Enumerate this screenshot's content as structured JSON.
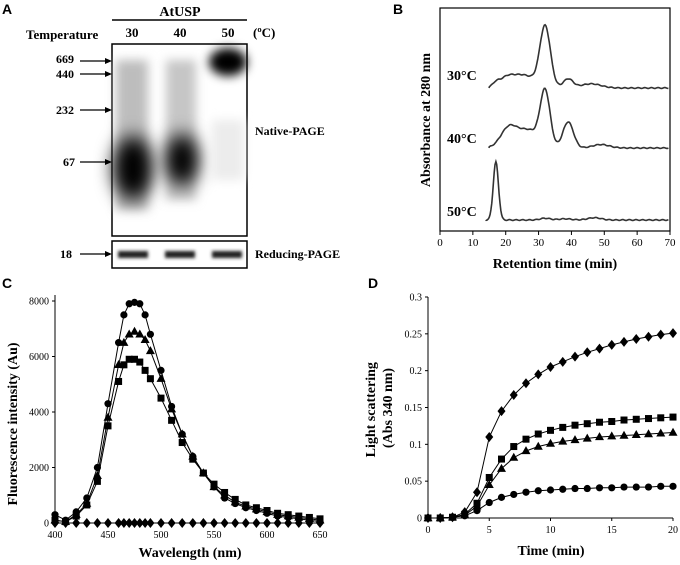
{
  "panels": {
    "a": {
      "letter": "A",
      "group_label": "AtUSP",
      "temperature_label": "Temperature",
      "temperatures": [
        "30",
        "40",
        "50"
      ],
      "unit": "(ºC)",
      "markers": [
        "669",
        "440",
        "232",
        "67"
      ],
      "native_label": "Native-PAGE",
      "reducing_marker": "18",
      "reducing_label": "Reducing-PAGE"
    },
    "b": {
      "letter": "B",
      "trace_labels": [
        "30°C",
        "40°C",
        "50°C"
      ],
      "peaks": [
        {
          "center": 32.0,
          "height": 1.0
        },
        {
          "center": 32.0,
          "height": 0.85
        },
        {
          "center": 17.0,
          "height": 0.95
        }
      ]
    },
    "c": {
      "letter": "C"
    },
    "d": {
      "letter": "D"
    }
  },
  "chart_data": [
    {
      "type": "line",
      "title": "",
      "xlabel": "Retention time (min)",
      "ylabel": "Absorbance at 280 nm",
      "xlim": [
        0,
        70
      ],
      "x_ticks": [
        "0",
        "10",
        "20",
        "30",
        "40",
        "50",
        "60",
        "70"
      ],
      "series": [
        {
          "name": "30°C",
          "main_peak_min": 32
        },
        {
          "name": "40°C",
          "main_peak_min": 32
        },
        {
          "name": "50°C",
          "main_peak_min": 17
        }
      ]
    },
    {
      "type": "line",
      "title": "",
      "xlabel": "Wavelength (nm)",
      "ylabel": "Fluorescence intensity (Au)",
      "xlim": [
        400,
        650
      ],
      "ylim": [
        0,
        8000
      ],
      "x_ticks": [
        "400",
        "450",
        "500",
        "550",
        "600",
        "650"
      ],
      "y_ticks": [
        "0",
        "2000",
        "4000",
        "6000",
        "8000"
      ],
      "x": [
        400,
        410,
        420,
        430,
        440,
        450,
        460,
        465,
        470,
        475,
        480,
        485,
        490,
        500,
        510,
        520,
        530,
        540,
        550,
        560,
        570,
        580,
        590,
        600,
        610,
        620,
        630,
        640,
        650
      ],
      "series": [
        {
          "name": "circle",
          "marker": "circle",
          "values": [
            300,
            100,
            400,
            900,
            2000,
            4300,
            6500,
            7500,
            7900,
            7950,
            7900,
            7500,
            6800,
            5500,
            4200,
            3200,
            2400,
            1800,
            1300,
            900,
            700,
            550,
            450,
            350,
            250,
            200,
            150,
            100,
            50
          ]
        },
        {
          "name": "triangle",
          "marker": "triangle",
          "values": [
            100,
            50,
            300,
            700,
            1700,
            3800,
            5700,
            6500,
            6800,
            6900,
            6800,
            6600,
            6200,
            5200,
            4100,
            3200,
            2400,
            1800,
            1300,
            1000,
            750,
            600,
            500,
            400,
            300,
            250,
            200,
            150,
            100
          ]
        },
        {
          "name": "square",
          "marker": "square",
          "values": [
            100,
            50,
            250,
            650,
            1500,
            3500,
            5100,
            5700,
            5900,
            5900,
            5800,
            5500,
            5200,
            4500,
            3700,
            2900,
            2300,
            1800,
            1400,
            1100,
            850,
            650,
            550,
            450,
            350,
            300,
            250,
            200,
            150
          ]
        },
        {
          "name": "diamond",
          "marker": "diamond",
          "values": [
            0,
            0,
            0,
            0,
            0,
            0,
            0,
            0,
            0,
            0,
            0,
            0,
            0,
            0,
            0,
            0,
            0,
            0,
            0,
            0,
            0,
            0,
            0,
            0,
            0,
            0,
            0,
            0,
            0
          ]
        }
      ]
    },
    {
      "type": "line",
      "title": "",
      "xlabel": "Time (min)",
      "ylabel": "Light scattering (Abs 340 nm)",
      "xlim": [
        0,
        20
      ],
      "ylim": [
        0,
        0.3
      ],
      "x_ticks": [
        "0",
        "5",
        "10",
        "15",
        "20"
      ],
      "y_ticks": [
        "0",
        "0.05",
        "0.1",
        "0.15",
        "0.2",
        "0.25",
        "0.3"
      ],
      "x": [
        0,
        1,
        2,
        3,
        4,
        5,
        6,
        7,
        8,
        9,
        10,
        11,
        12,
        13,
        14,
        15,
        16,
        17,
        18,
        19,
        20
      ],
      "series": [
        {
          "name": "diamond",
          "marker": "diamond",
          "values": [
            0,
            0,
            0.001,
            0.008,
            0.035,
            0.11,
            0.145,
            0.167,
            0.183,
            0.195,
            0.205,
            0.212,
            0.219,
            0.225,
            0.23,
            0.235,
            0.239,
            0.243,
            0.246,
            0.249,
            0.251
          ]
        },
        {
          "name": "square",
          "marker": "square",
          "values": [
            0,
            0,
            0.001,
            0.005,
            0.02,
            0.055,
            0.08,
            0.097,
            0.107,
            0.114,
            0.119,
            0.123,
            0.126,
            0.128,
            0.13,
            0.131,
            0.133,
            0.134,
            0.135,
            0.136,
            0.137
          ]
        },
        {
          "name": "triangle",
          "marker": "triangle",
          "values": [
            0,
            0,
            0.001,
            0.004,
            0.016,
            0.045,
            0.067,
            0.082,
            0.091,
            0.097,
            0.101,
            0.104,
            0.106,
            0.108,
            0.11,
            0.111,
            0.112,
            0.113,
            0.114,
            0.115,
            0.116
          ]
        },
        {
          "name": "circle",
          "marker": "circle",
          "values": [
            0,
            0,
            0.001,
            0.003,
            0.01,
            0.021,
            0.028,
            0.032,
            0.035,
            0.037,
            0.038,
            0.039,
            0.04,
            0.04,
            0.041,
            0.041,
            0.042,
            0.042,
            0.042,
            0.043,
            0.043
          ]
        }
      ]
    }
  ]
}
